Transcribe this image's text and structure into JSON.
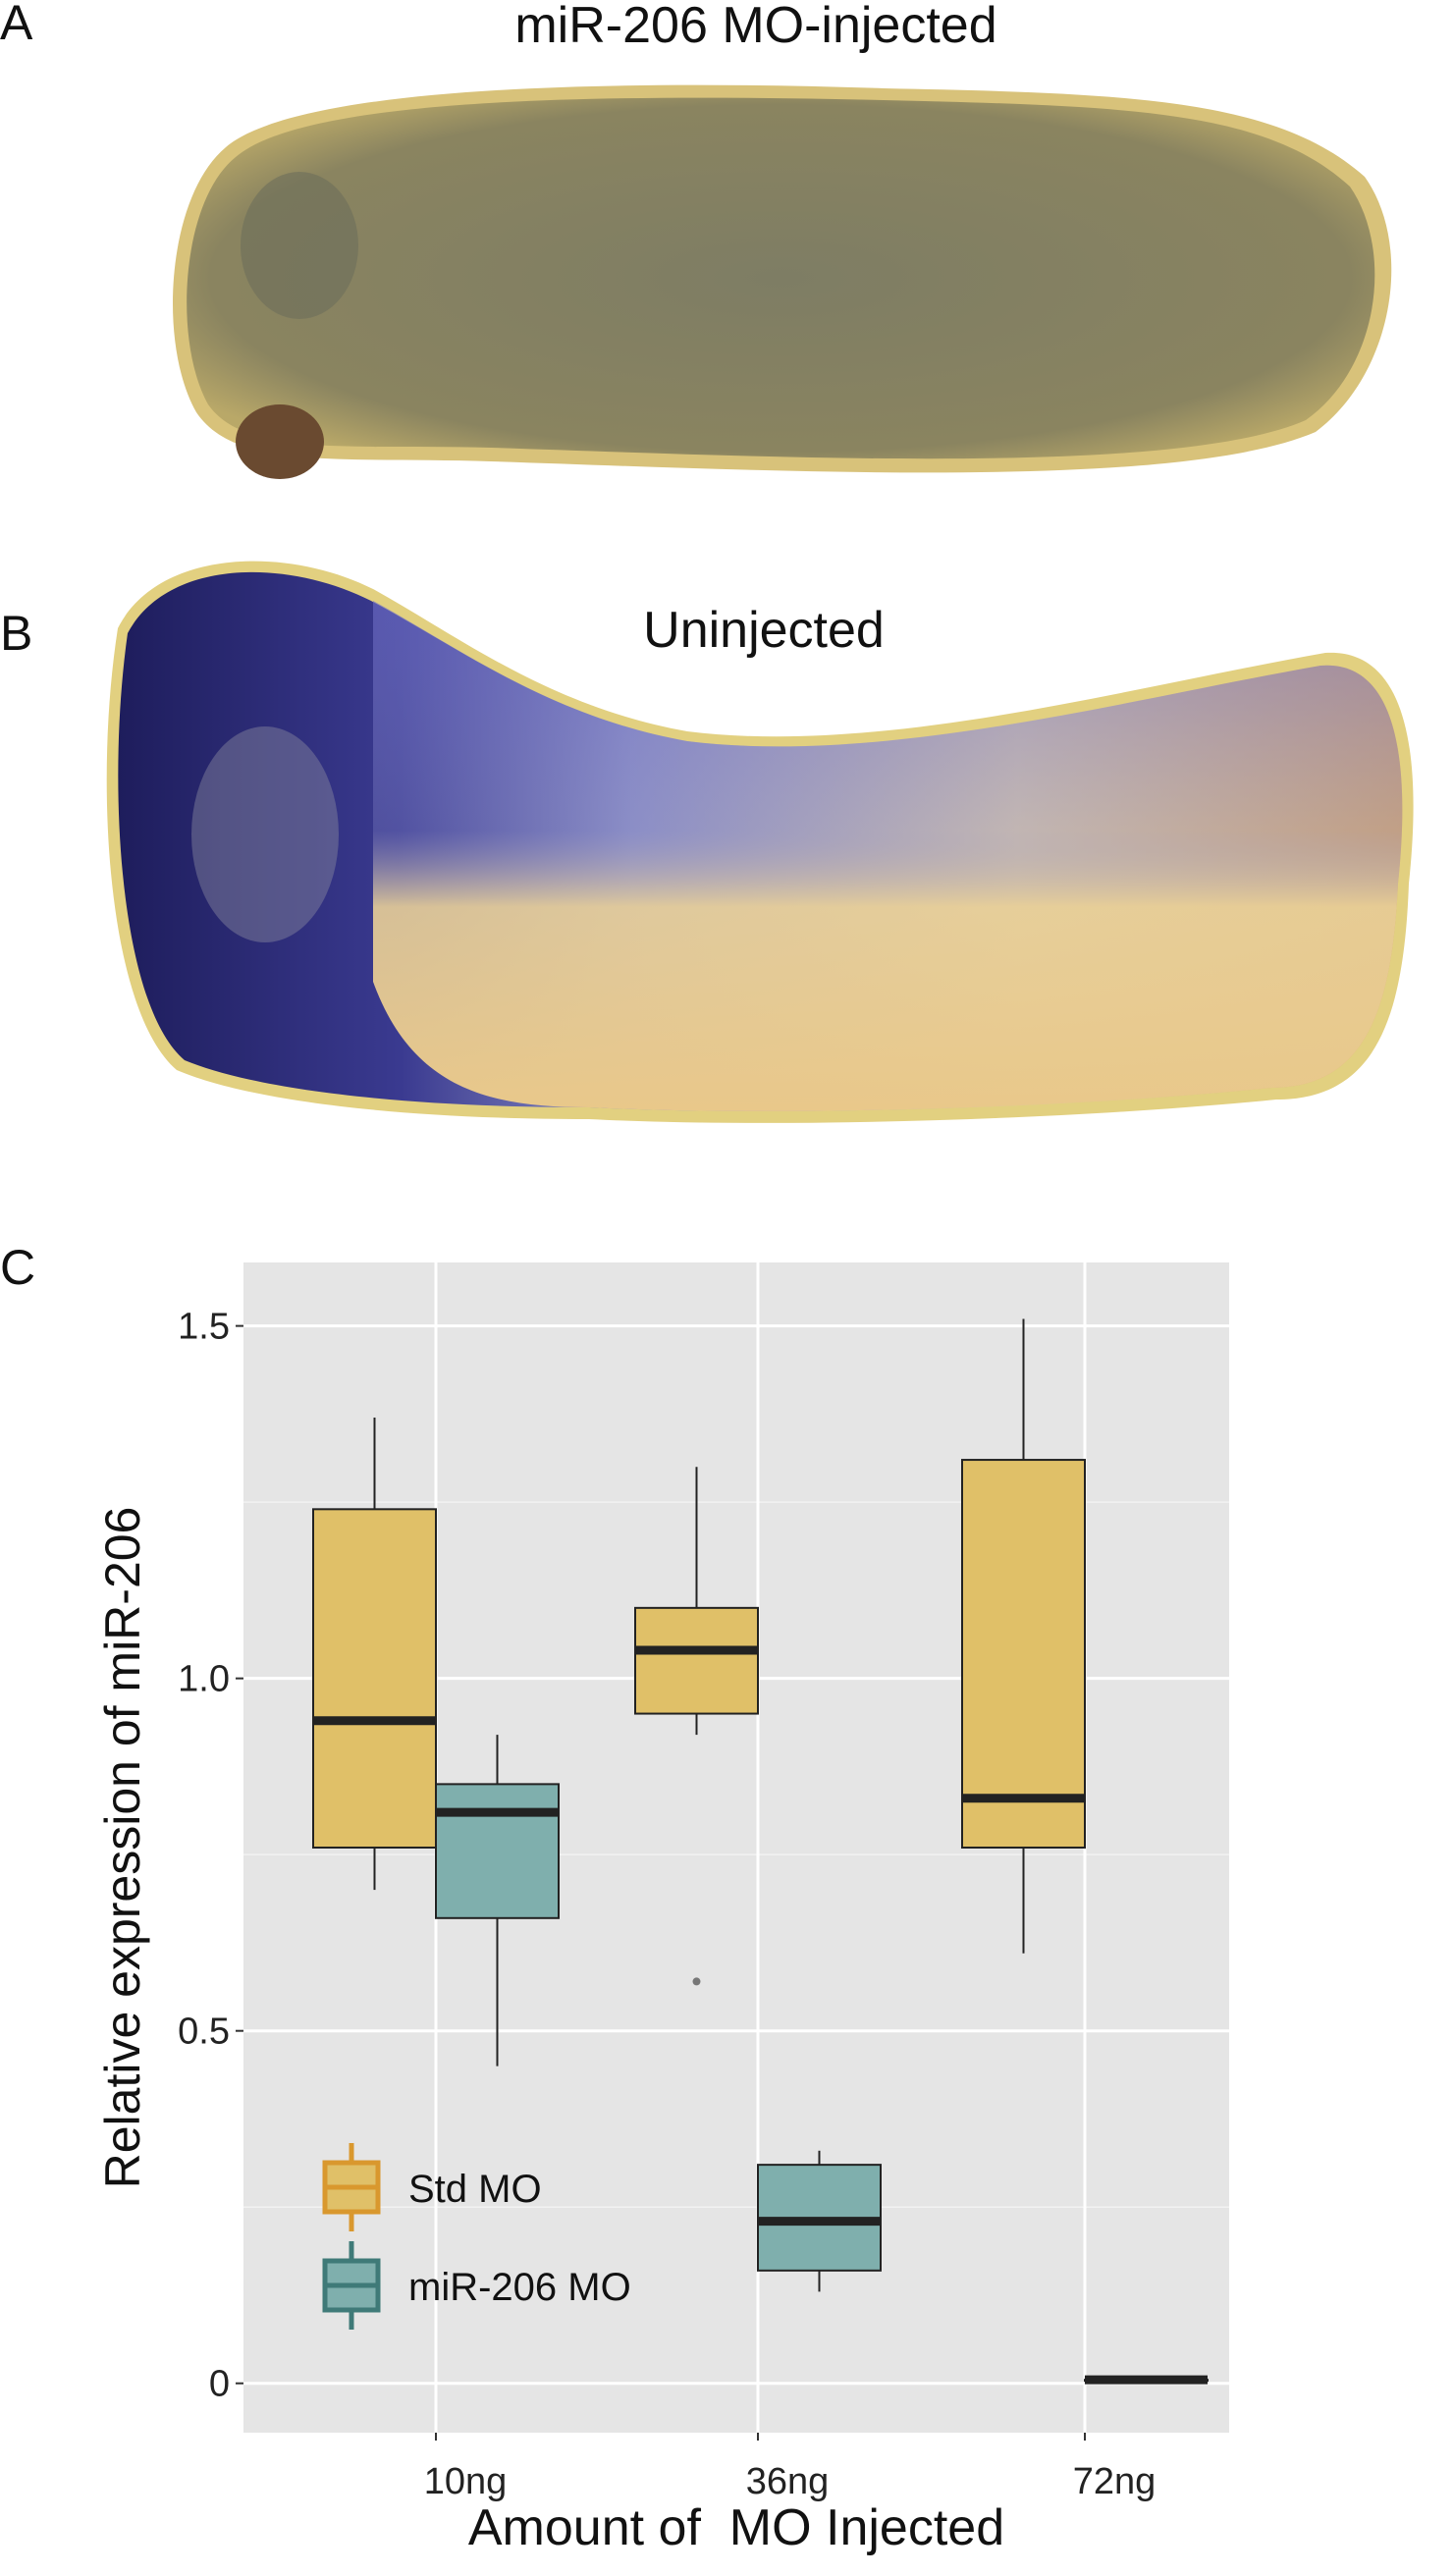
{
  "panels": {
    "a": {
      "letter": "A",
      "title": "miR-206 MO-injected"
    },
    "b": {
      "letter": "B",
      "title": "Uninjected"
    },
    "c": {
      "letter": "C"
    }
  },
  "chart_data": {
    "type": "box",
    "xlabel": "Amount of  MO Injected",
    "ylabel": "Relative expression of miR-206",
    "categories": [
      "10ng",
      "36ng",
      "72ng"
    ],
    "ylim": [
      -0.07,
      1.59
    ],
    "yticks": [
      0,
      0.5,
      1.0,
      1.5
    ],
    "ytick_labels": [
      "0",
      "0.5",
      "1.0",
      "1.5"
    ],
    "grid": true,
    "legend_position": "bottom-left",
    "series": [
      {
        "name": "Std MO",
        "color": "#e0c068",
        "legend_color": "#d9982e",
        "boxes": [
          {
            "category": "10ng",
            "min": 0.7,
            "q1": 0.76,
            "median": 0.94,
            "q3": 1.24,
            "max": 1.37,
            "outliers": []
          },
          {
            "category": "36ng",
            "min": 0.92,
            "q1": 0.95,
            "median": 1.04,
            "q3": 1.1,
            "max": 1.3,
            "outliers": [
              0.57
            ]
          },
          {
            "category": "72ng",
            "min": 0.61,
            "q1": 0.76,
            "median": 0.83,
            "q3": 1.31,
            "max": 1.51,
            "outliers": []
          }
        ]
      },
      {
        "name": "miR-206 MO",
        "color": "#7fafad",
        "legend_color": "#3f7a78",
        "boxes": [
          {
            "category": "10ng",
            "min": 0.45,
            "q1": 0.66,
            "median": 0.81,
            "q3": 0.85,
            "max": 0.92,
            "outliers": []
          },
          {
            "category": "36ng",
            "min": 0.13,
            "q1": 0.16,
            "median": 0.23,
            "q3": 0.31,
            "max": 0.33,
            "outliers": []
          },
          {
            "category": "72ng",
            "min": 0.005,
            "q1": 0.005,
            "median": 0.005,
            "q3": 0.005,
            "max": 0.005,
            "outliers": []
          }
        ]
      }
    ]
  }
}
